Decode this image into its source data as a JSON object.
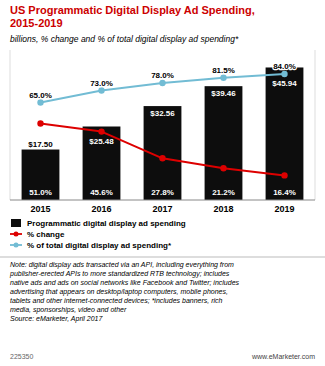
{
  "chart_data": {
    "type": "bar",
    "title": "US Programmatic Digital Display Ad Spending,\n2015-2019",
    "subtitle": "billions, % change and % of total digital display ad spending*",
    "categories": [
      "2015",
      "2016",
      "2017",
      "2018",
      "2019"
    ],
    "series": [
      {
        "name": "Programmatic digital display ad spending",
        "type": "bar",
        "color": "#0d0d0d",
        "values": [
          17.5,
          25.48,
          32.56,
          39.46,
          45.94
        ],
        "value_labels": [
          "$17.50",
          "$25.48",
          "$32.56",
          "$39.46",
          "$45.94"
        ]
      },
      {
        "name": "% change",
        "type": "line",
        "axis": "y2",
        "color": "#dd0000",
        "marker": "circle",
        "values": [
          51.0,
          45.6,
          27.8,
          21.2,
          16.4
        ],
        "value_labels": [
          "51.0%",
          "45.6%",
          "27.8%",
          "21.2%",
          "16.4%"
        ]
      },
      {
        "name": "% of total digital display ad spending*",
        "type": "line",
        "axis": "y2",
        "color": "#72bcd4",
        "marker": "circle",
        "values": [
          65.0,
          73.0,
          78.0,
          81.5,
          84.0
        ],
        "value_labels": [
          "65.0%",
          "73.0%",
          "78.0%",
          "81.5%",
          "84.0%"
        ]
      }
    ],
    "ylim": [
      0,
      52
    ],
    "y2lim": [
      0,
      100
    ],
    "grid": false,
    "legend": "bottom",
    "data_labels": true,
    "tick_labels": "x",
    "annotations": [
      "Note: digital display ads transacted via an API, including everything from\npublisher-erected APIs to more standardized RTB technology; includes\nnative ads and ads on social networks like Facebook and Twitter; includes\nadvertising that appears on desktop/laptop computers, mobile phones,\ntablets and other internet-connected devices; *includes banners, rich\nmedia, sponsorships, video and other\nSource: eMarketer, April 2017",
      "225350",
      "www.eMarketer.com"
    ]
  }
}
